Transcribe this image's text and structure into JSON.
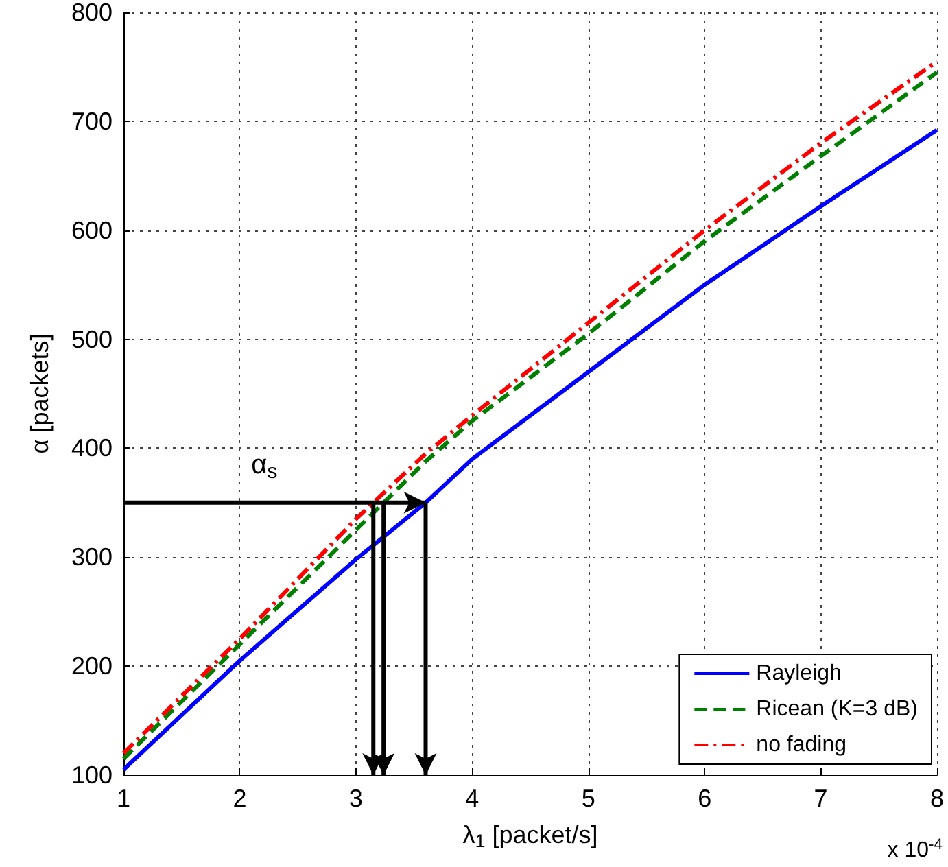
{
  "chart_data": {
    "type": "line",
    "xlabel": "λ$_{1}$ [packet/s]",
    "ylabel": "α [packets]",
    "x": [
      1,
      2,
      3,
      3.6,
      4,
      5,
      6,
      7,
      8
    ],
    "series": [
      {
        "name": "Rayleigh",
        "color": "#0000ff",
        "line_style": "solid",
        "values": [
          105,
          205,
          298,
          350,
          390,
          470,
          550,
          622,
          692
        ]
      },
      {
        "name": "Ricean (K=3 dB)",
        "color": "#008000",
        "line_style": "dashed",
        "values": [
          115,
          220,
          325,
          388,
          425,
          505,
          590,
          668,
          745
        ]
      },
      {
        "name": "no fading",
        "color": "#ff0000",
        "line_style": "dashdot",
        "values": [
          120,
          225,
          335,
          395,
          430,
          515,
          600,
          680,
          755
        ]
      }
    ],
    "xlim": [
      1,
      8
    ],
    "xticks": [
      1,
      2,
      3,
      4,
      5,
      6,
      7,
      8
    ],
    "ylim": [
      100,
      800
    ],
    "yticks": [
      100,
      200,
      300,
      400,
      500,
      600,
      700,
      800
    ],
    "annotations": [
      "x 10$^{-4}$"
    ],
    "ref_lines": [
      {
        "axis": "y",
        "value": 350,
        "label": "α$_{s}$",
        "color": "#000000"
      }
    ],
    "grid": true,
    "legend": "bottom right",
    "marker": "none"
  }
}
